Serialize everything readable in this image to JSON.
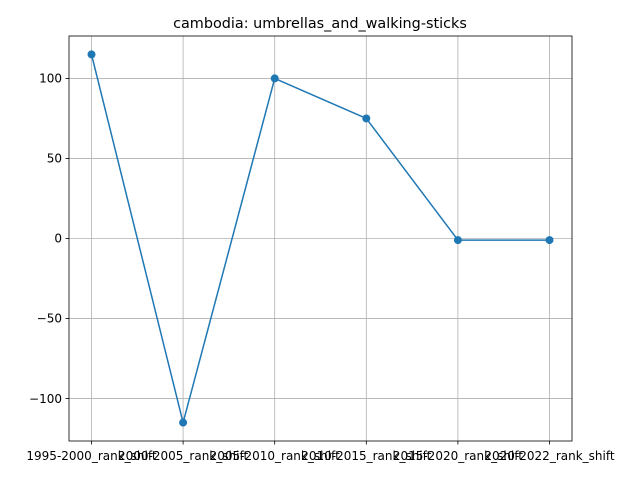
{
  "chart_data": {
    "type": "line",
    "title": "cambodia: umbrellas_and_walking-sticks",
    "xlabel": "",
    "ylabel": "",
    "categories": [
      "1995-2000_rank_shift",
      "2000-2005_rank_shift",
      "2005-2010_rank_shift",
      "2010-2015_rank_shift",
      "2015-2020_rank_shift",
      "2020-2022_rank_shift"
    ],
    "series": [
      {
        "values": [
          115,
          -115,
          100,
          75,
          -1,
          -1
        ]
      }
    ],
    "ylim": [
      -126.5,
      126.5
    ],
    "yticks": [
      -100,
      -50,
      0,
      50,
      100
    ],
    "ytick_labels": [
      "−100",
      "−50",
      "0",
      "50",
      "100"
    ],
    "grid": true,
    "legend": "none",
    "colors": {
      "line": "#1f77b4",
      "marker": "#1f77b4",
      "grid": "#b0b0b0",
      "axes": "#000000"
    }
  }
}
